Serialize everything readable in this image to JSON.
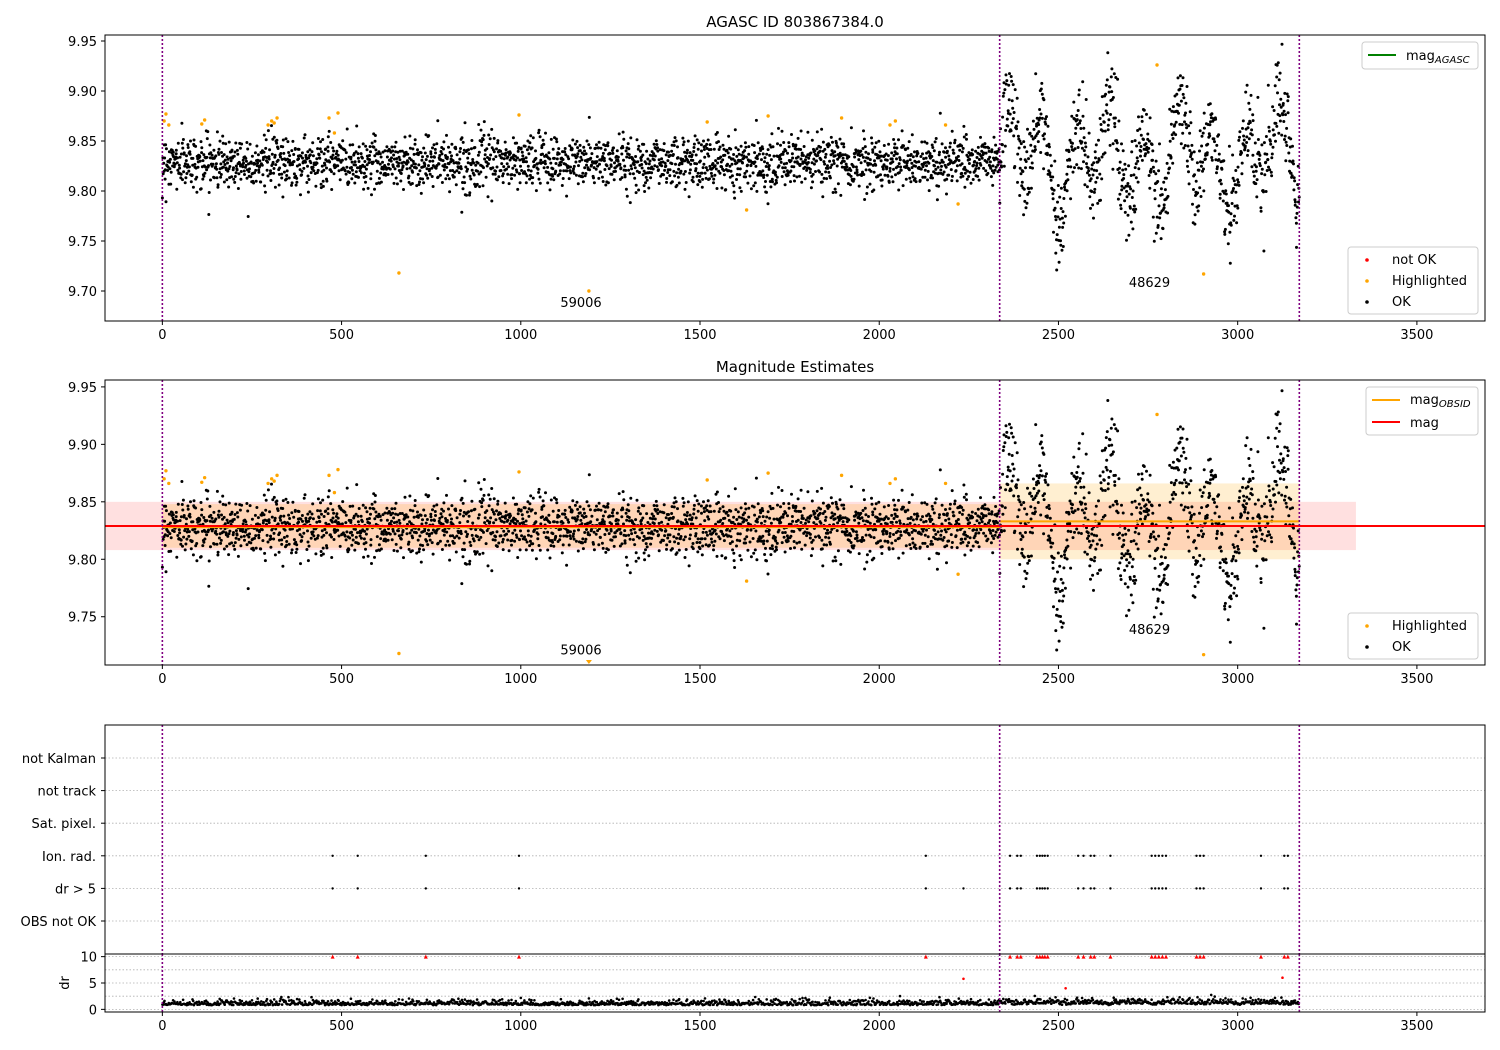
{
  "chart_data": [
    {
      "type": "scatter",
      "title": "AGASC ID 803867384.0",
      "xlim": [
        -160,
        3690
      ],
      "ylim": [
        9.67,
        9.956
      ],
      "x_ticks": [
        "0",
        "500",
        "1000",
        "1500",
        "2000",
        "2500",
        "3000",
        "3500"
      ],
      "y_ticks": [
        "9.70",
        "9.75",
        "9.80",
        "9.85",
        "9.90",
        "9.95"
      ],
      "obs_boundaries": [
        0,
        2336,
        3172
      ],
      "annotations": [
        {
          "text": "59006",
          "x": 1168,
          "y": 9.684
        },
        {
          "text": "48629",
          "x": 2754,
          "y": 9.704
        }
      ],
      "line_legend": [
        {
          "name": "mag",
          "sub": "AGASC",
          "color": "#008000"
        }
      ],
      "marker_legend": [
        {
          "name": "not OK",
          "color": "#ff0000"
        },
        {
          "name": "Highlighted",
          "color": "#ffa500"
        },
        {
          "name": "OK",
          "color": "#000000"
        }
      ],
      "grid": false,
      "series": [
        {
          "name": "OK",
          "color": "#000000",
          "note": "~3170 points; segment 1 (x 0–2336) mean 9.829 sd 0.013; segment 2 (x 2336–3172) oscillating 9.75–9.92"
        },
        {
          "name": "Highlighted",
          "color": "#ffa500",
          "points": [
            [
              5,
              9.87
            ],
            [
              10,
              9.877
            ],
            [
              18,
              9.866
            ],
            [
              110,
              9.867
            ],
            [
              118,
              9.871
            ],
            [
              295,
              9.866
            ],
            [
              305,
              9.87
            ],
            [
              312,
              9.868
            ],
            [
              320,
              9.873
            ],
            [
              465,
              9.873
            ],
            [
              490,
              9.878
            ],
            [
              480,
              9.858
            ],
            [
              660,
              9.718
            ],
            [
              995,
              9.876
            ],
            [
              1190,
              9.7
            ],
            [
              1520,
              9.869
            ],
            [
              1630,
              9.781
            ],
            [
              1690,
              9.875
            ],
            [
              1895,
              9.873
            ],
            [
              2030,
              9.866
            ],
            [
              2045,
              9.87
            ],
            [
              2185,
              9.866
            ],
            [
              2220,
              9.787
            ],
            [
              2775,
              9.926
            ],
            [
              2905,
              9.717
            ]
          ]
        }
      ]
    },
    {
      "type": "scatter",
      "title": "Magnitude Estimates",
      "xlim": [
        -160,
        3690
      ],
      "ylim": [
        9.708,
        9.956
      ],
      "x_ticks": [
        "0",
        "500",
        "1000",
        "1500",
        "2000",
        "2500",
        "3000",
        "3500"
      ],
      "y_ticks": [
        "9.75",
        "9.80",
        "9.85",
        "9.90",
        "9.95"
      ],
      "obs_boundaries": [
        0,
        2336,
        3172
      ],
      "annotations": [
        {
          "text": "59006",
          "x": 1168,
          "y": 9.717
        },
        {
          "text": "48629",
          "x": 2754,
          "y": 9.735
        }
      ],
      "line_legend": [
        {
          "name": "mag",
          "sub": "OBSID",
          "color": "#ffa500"
        },
        {
          "name": "mag",
          "sub": "",
          "color": "#ff0000"
        }
      ],
      "marker_legend": [
        {
          "name": "Highlighted",
          "color": "#ffa500"
        },
        {
          "name": "OK",
          "color": "#000000"
        }
      ],
      "mag_line": {
        "value": 9.829,
        "band": [
          9.808,
          9.85
        ],
        "x_range": [
          -160,
          3330
        ]
      },
      "obsid_segments": [
        {
          "x": [
            0,
            2336
          ],
          "mag": 9.828,
          "band": [
            9.81,
            9.848
          ]
        },
        {
          "x": [
            2336,
            3172
          ],
          "mag": 9.833,
          "band": [
            9.8,
            9.866
          ]
        }
      ],
      "clipped_marker": {
        "x": 1190,
        "label": "59006"
      },
      "grid": false
    },
    {
      "type": "scatter",
      "title": "",
      "xlim": [
        -160,
        3690
      ],
      "categories": [
        "not Kalman",
        "not track",
        "Sat. pixel.",
        "Ion. rad.",
        "dr > 5",
        "OBS not OK"
      ],
      "obs_boundaries": [
        0,
        2336,
        3172
      ],
      "flag_x": [
        475,
        545,
        735,
        995,
        2130,
        2365,
        2385,
        2395,
        2440,
        2448,
        2455,
        2462,
        2470,
        2555,
        2570,
        2590,
        2600,
        2645,
        2760,
        2770,
        2780,
        2790,
        2800,
        2885,
        2895,
        2905,
        3065,
        3130,
        3140
      ],
      "dr_only_x": [
        2235
      ],
      "x_ticks": [
        "0",
        "500",
        "1000",
        "1500",
        "2000",
        "2500",
        "3000",
        "3500"
      ],
      "grid": true
    },
    {
      "type": "scatter",
      "title": "",
      "ylabel": "dr",
      "xlim": [
        -160,
        3690
      ],
      "ylim": [
        -0.5,
        10.5
      ],
      "y_ticks": [
        "0",
        "5",
        "10"
      ],
      "x_ticks": [
        "0",
        "500",
        "1000",
        "1500",
        "2000",
        "2500",
        "3000",
        "3500"
      ],
      "obs_boundaries": [
        0,
        2336,
        3172
      ],
      "clip_value": 10,
      "outliers": [
        [
          2235,
          5.8
        ],
        [
          2520,
          4.0
        ],
        [
          3125,
          6.0
        ]
      ],
      "grid": true
    }
  ]
}
